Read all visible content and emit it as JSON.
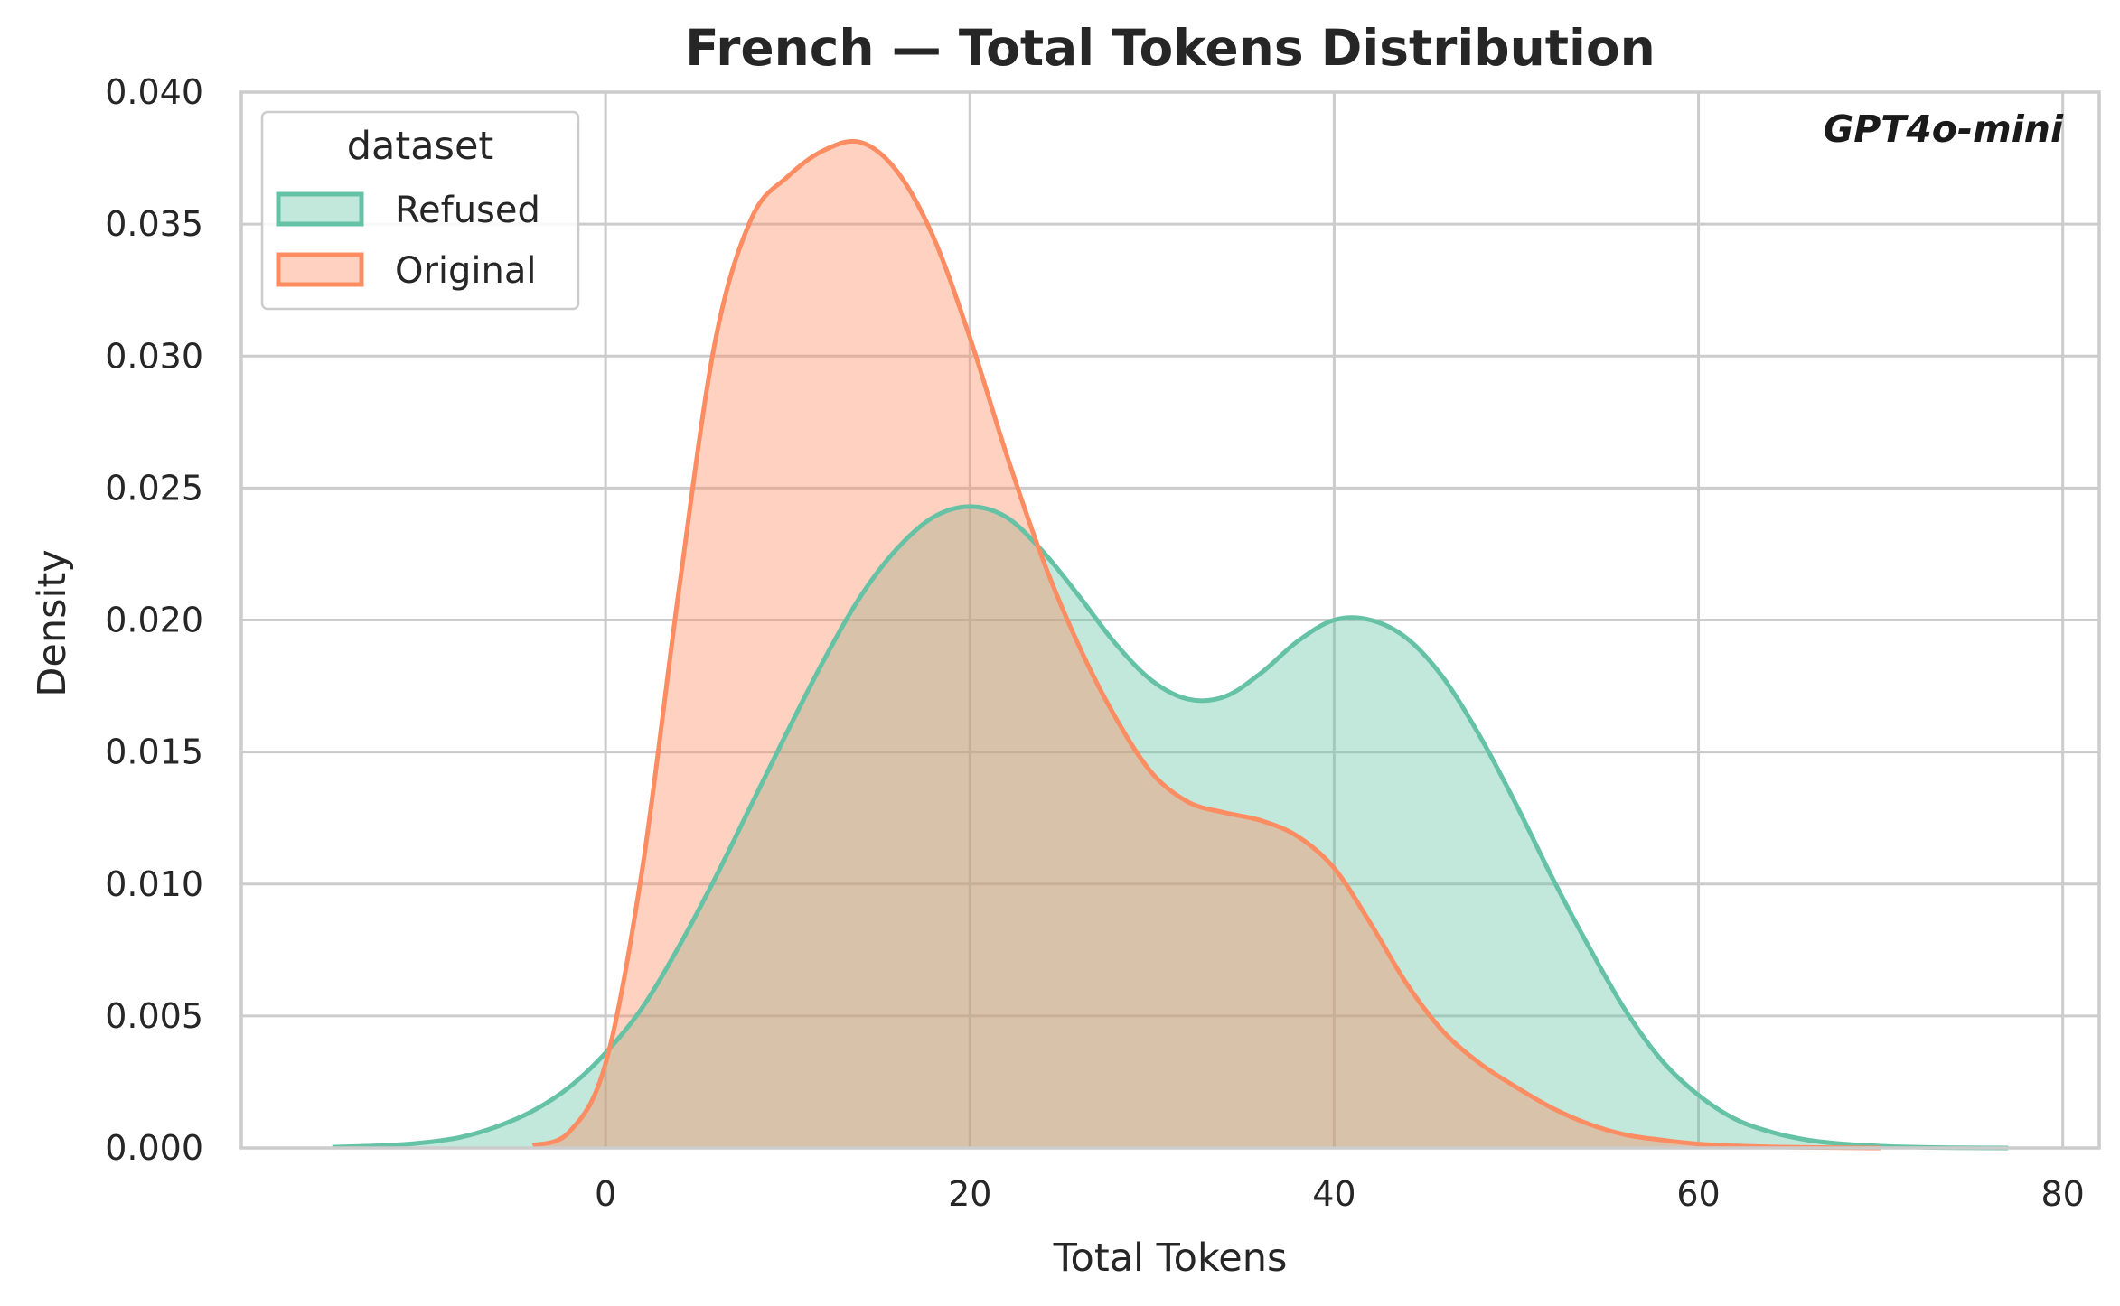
{
  "chart_data": {
    "type": "area",
    "title": "French — Total Tokens Distribution",
    "xlabel": "Total Tokens",
    "ylabel": "Density",
    "xlim": [
      -20,
      82
    ],
    "ylim": [
      0,
      0.04
    ],
    "xticks": [
      0,
      20,
      40,
      60,
      80
    ],
    "xtick_labels": [
      "0",
      "20",
      "40",
      "60",
      "80"
    ],
    "yticks": [
      0,
      0.005,
      0.01,
      0.015,
      0.02,
      0.025,
      0.03,
      0.035,
      0.04
    ],
    "ytick_labels": [
      "0.000",
      "0.005",
      "0.010",
      "0.015",
      "0.020",
      "0.025",
      "0.030",
      "0.035",
      "0.040"
    ],
    "grid": true,
    "annotation": "GPT4o-mini",
    "legend": {
      "title": "dataset",
      "placement": "top-left",
      "entries": [
        "Refused",
        "Original"
      ]
    },
    "series": [
      {
        "name": "Refused",
        "color": "#66c2a5",
        "x": [
          -15,
          -12,
          -10,
          -8,
          -6,
          -4,
          -2,
          0,
          2,
          4,
          6,
          8,
          10,
          12,
          14,
          16,
          18,
          20,
          22,
          24,
          26,
          28,
          30,
          32,
          34,
          36,
          38,
          40,
          42,
          44,
          46,
          48,
          50,
          52,
          54,
          56,
          58,
          60,
          62,
          64,
          66,
          68,
          70,
          72,
          74,
          77
        ],
        "y": [
          3e-05,
          0.0001,
          0.0002,
          0.0004,
          0.0008,
          0.0014,
          0.0023,
          0.0036,
          0.0053,
          0.0076,
          0.0102,
          0.013,
          0.0158,
          0.0185,
          0.0209,
          0.0227,
          0.0239,
          0.0243,
          0.0239,
          0.0226,
          0.0209,
          0.0191,
          0.0177,
          0.017,
          0.0171,
          0.018,
          0.0192,
          0.02,
          0.02,
          0.0193,
          0.0178,
          0.0156,
          0.013,
          0.0102,
          0.0076,
          0.0052,
          0.0033,
          0.002,
          0.0011,
          0.0006,
          0.0003,
          0.00015,
          7e-05,
          3e-05,
          1e-05,
          0.0
        ]
      },
      {
        "name": "Original",
        "color": "#fc8d62",
        "x": [
          -4,
          -2,
          0,
          2,
          4,
          6,
          8,
          10,
          12,
          14,
          16,
          18,
          20,
          22,
          24,
          26,
          28,
          30,
          32,
          34,
          36,
          38,
          40,
          42,
          44,
          46,
          48,
          50,
          52,
          54,
          56,
          58,
          60,
          62,
          64,
          66,
          68,
          70
        ],
        "y": [
          0.0001,
          0.0006,
          0.0032,
          0.0105,
          0.021,
          0.0305,
          0.0352,
          0.0368,
          0.0378,
          0.0381,
          0.037,
          0.0345,
          0.0307,
          0.0263,
          0.0223,
          0.019,
          0.0163,
          0.0142,
          0.0131,
          0.0127,
          0.0124,
          0.0118,
          0.0106,
          0.0085,
          0.0062,
          0.0044,
          0.0032,
          0.0023,
          0.0015,
          0.0009,
          0.0005,
          0.0003,
          0.00015,
          8e-05,
          4e-05,
          2e-05,
          1e-05,
          0.0
        ]
      }
    ]
  }
}
